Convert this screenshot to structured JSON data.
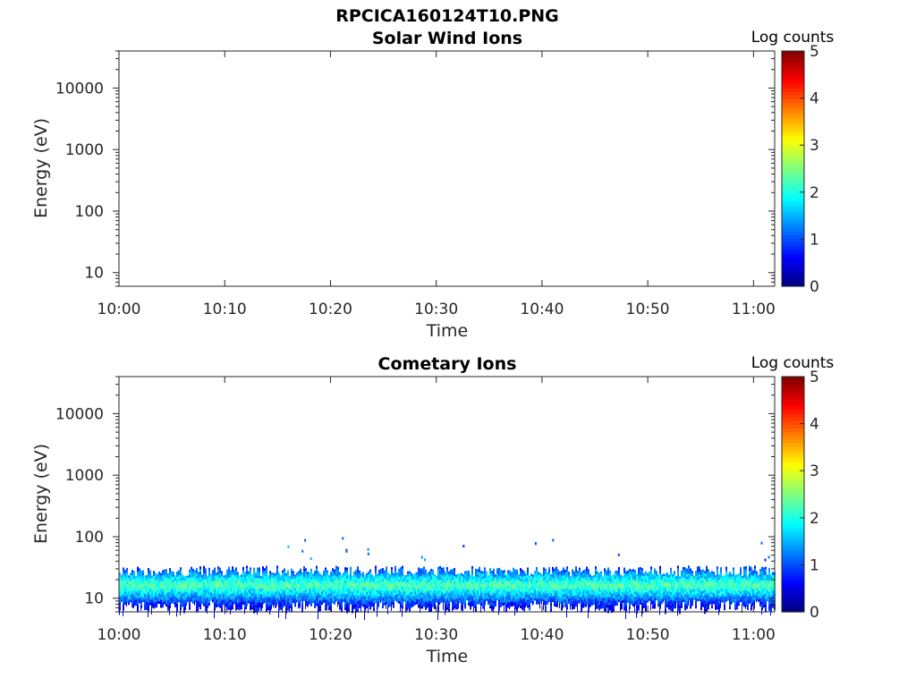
{
  "figure": {
    "title": "RPCICA160124T10.PNG"
  },
  "chart_data": [
    {
      "type": "heatmap",
      "title": "Solar Wind Ions",
      "xlabel": "Time",
      "ylabel": "Energy (eV)",
      "x_ticks": [
        "10:00",
        "10:10",
        "10:20",
        "10:30",
        "10:40",
        "10:50",
        "11:00"
      ],
      "xlim": [
        "10:00",
        "11:02"
      ],
      "y_scale": "log",
      "y_ticks": [
        "10",
        "100",
        "1000",
        "10000"
      ],
      "ylim": [
        6,
        40000
      ],
      "colorbar": {
        "label": "Log counts",
        "ticks": [
          "0",
          "1",
          "2",
          "3",
          "4",
          "5"
        ],
        "range": [
          0,
          5
        ],
        "colormap": "jet"
      },
      "band": null
    },
    {
      "type": "heatmap",
      "title": "Cometary Ions",
      "xlabel": "Time",
      "ylabel": "Energy (eV)",
      "x_ticks": [
        "10:00",
        "10:10",
        "10:20",
        "10:30",
        "10:40",
        "10:50",
        "11:00"
      ],
      "xlim": [
        "10:00",
        "11:02"
      ],
      "y_scale": "log",
      "y_ticks": [
        "10",
        "100",
        "1000",
        "10000"
      ],
      "ylim": [
        6,
        40000
      ],
      "colorbar": {
        "label": "Log counts",
        "ticks": [
          "0",
          "1",
          "2",
          "3",
          "4",
          "5"
        ],
        "range": [
          0,
          5
        ],
        "colormap": "jet"
      },
      "band": {
        "time_start": "10:00",
        "time_end": "11:02",
        "energy_min": 6,
        "energy_max": 30,
        "peak_energy": 17,
        "peak_log_counts": 2.3,
        "sparse_events_energy": [
          40,
          100
        ]
      }
    }
  ]
}
